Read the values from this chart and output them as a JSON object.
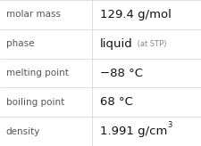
{
  "rows": [
    {
      "label": "molar mass",
      "value": "129.4 g/mol",
      "type": "plain"
    },
    {
      "label": "phase",
      "value": "liquid",
      "type": "phase",
      "suffix": " (at STP)"
    },
    {
      "label": "melting point",
      "value": "−88 °C",
      "type": "plain"
    },
    {
      "label": "boiling point",
      "value": "68 °C",
      "type": "plain"
    },
    {
      "label": "density",
      "value": "1.991 g/cm",
      "type": "super",
      "suffix": "3"
    }
  ],
  "background_color": "#ffffff",
  "line_color": "#d0d0d0",
  "label_color": "#555555",
  "value_color": "#111111",
  "phase_suffix_color": "#888888",
  "label_fontsize": 7.5,
  "value_fontsize": 9.5,
  "small_fontsize": 6.0,
  "col_split": 0.455,
  "fig_width": 2.26,
  "fig_height": 1.64,
  "dpi": 100
}
